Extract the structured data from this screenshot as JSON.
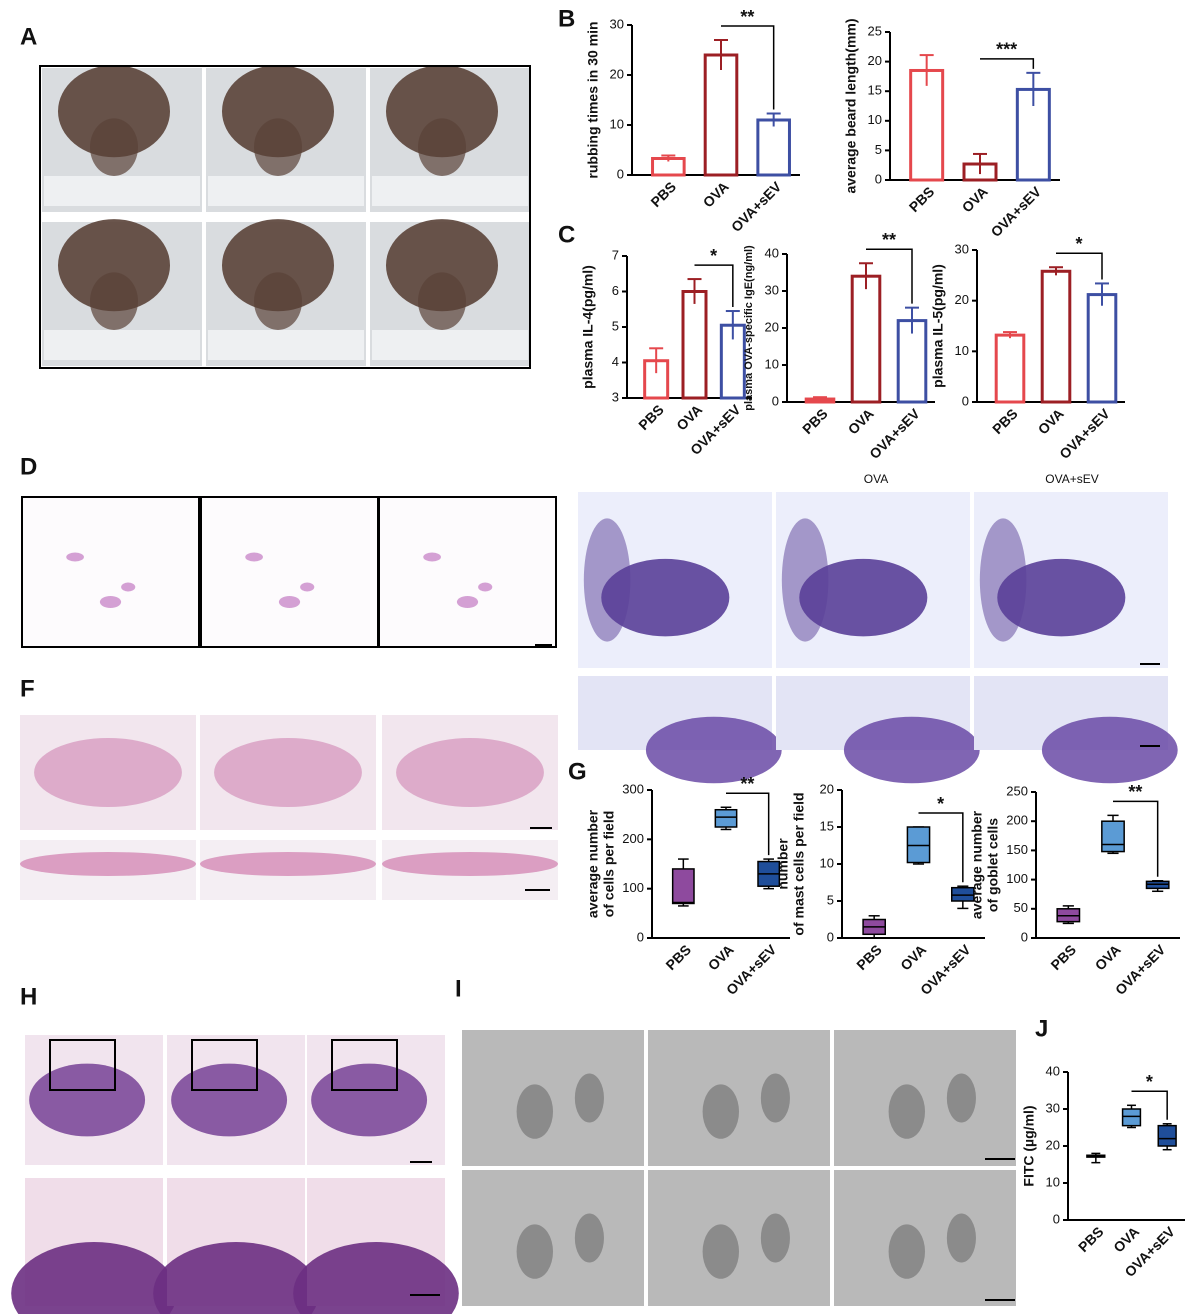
{
  "panel_labels": [
    "A",
    "B",
    "C",
    "D",
    "F",
    "G",
    "H",
    "I",
    "J"
  ],
  "panel_d_headers": [
    "OVA",
    "OVA+sEV"
  ],
  "chart_data": [
    {
      "type": "bar",
      "ylabel": "rubbing times in 30 min",
      "categories": [
        "PBS",
        "OVA",
        "OVA+sEV"
      ],
      "colors": [
        "#e5484d",
        "#9c1f24",
        "#3d4fa3"
      ],
      "values": [
        3.3,
        24,
        11
      ],
      "errors": [
        0.6,
        3,
        1.3
      ],
      "ylim": [
        0,
        30
      ],
      "yticks": [
        0,
        10,
        20,
        30
      ],
      "significance": {
        "between": [
          "OVA",
          "OVA+sEV"
        ],
        "label": "**"
      }
    },
    {
      "type": "bar",
      "ylabel": "average beard length(mm)",
      "categories": [
        "PBS",
        "OVA",
        "OVA+sEV"
      ],
      "colors": [
        "#e5484d",
        "#9c1f24",
        "#3d4fa3"
      ],
      "values": [
        18.5,
        2.7,
        15.3
      ],
      "errors": [
        2.6,
        1.7,
        2.8
      ],
      "ylim": [
        0,
        25
      ],
      "yticks": [
        0,
        5,
        10,
        15,
        20,
        25
      ],
      "significance": {
        "between": [
          "OVA",
          "OVA+sEV"
        ],
        "label": "***"
      }
    },
    {
      "type": "bar",
      "ylabel": "plasma IL-4(pg/ml)",
      "categories": [
        "PBS",
        "OVA",
        "OVA+sEV"
      ],
      "colors": [
        "#e5484d",
        "#9c1f24",
        "#3d4fa3"
      ],
      "values": [
        4.05,
        6.0,
        5.05
      ],
      "errors": [
        0.35,
        0.35,
        0.4
      ],
      "ylim": [
        3,
        7
      ],
      "yticks": [
        3,
        4,
        5,
        6,
        7
      ],
      "significance": {
        "between": [
          "OVA",
          "OVA+sEV"
        ],
        "label": "*"
      }
    },
    {
      "type": "bar",
      "ylabel": "plasma OVA-specific IgE(ng/ml)",
      "categories": [
        "PBS",
        "OVA",
        "OVA+sEV"
      ],
      "colors": [
        "#e5484d",
        "#9c1f24",
        "#3d4fa3"
      ],
      "values": [
        0.8,
        34,
        22
      ],
      "errors": [
        0.5,
        3.5,
        3.5
      ],
      "ylim": [
        0,
        40
      ],
      "yticks": [
        0,
        10,
        20,
        30,
        40
      ],
      "significance": {
        "between": [
          "OVA",
          "OVA+sEV"
        ],
        "label": "**"
      }
    },
    {
      "type": "bar",
      "ylabel": "plasma IL-5(pg/ml)",
      "categories": [
        "PBS",
        "OVA",
        "OVA+sEV"
      ],
      "colors": [
        "#e5484d",
        "#9c1f24",
        "#3d4fa3"
      ],
      "values": [
        13.2,
        25.8,
        21.2
      ],
      "errors": [
        0.6,
        0.8,
        2.2
      ],
      "ylim": [
        0,
        30
      ],
      "yticks": [
        0,
        10,
        20,
        30
      ],
      "significance": {
        "between": [
          "OVA",
          "OVA+sEV"
        ],
        "label": "*"
      }
    },
    {
      "type": "box",
      "ylabel": [
        "average number",
        "of cells per field"
      ],
      "categories": [
        "PBS",
        "OVA",
        "OVA+sEV"
      ],
      "boxes": [
        {
          "color": "#8e4a9e",
          "min": 65,
          "q1": 70,
          "median": 72,
          "q3": 140,
          "max": 160
        },
        {
          "color": "#5b9bd5",
          "min": 220,
          "q1": 225,
          "median": 245,
          "q3": 260,
          "max": 265
        },
        {
          "color": "#1f4e9a",
          "min": 100,
          "q1": 105,
          "median": 130,
          "q3": 155,
          "max": 160
        }
      ],
      "ylim": [
        0,
        300
      ],
      "yticks": [
        0,
        100,
        200,
        300
      ],
      "significance": {
        "between": [
          "OVA",
          "OVA+sEV"
        ],
        "label": "**"
      }
    },
    {
      "type": "box",
      "ylabel": [
        "number",
        "of mast cells per field"
      ],
      "categories": [
        "PBS",
        "OVA",
        "OVA+sEV"
      ],
      "boxes": [
        {
          "color": "#8e4a9e",
          "min": 0,
          "q1": 0.5,
          "median": 1.5,
          "q3": 2.5,
          "max": 3
        },
        {
          "color": "#5b9bd5",
          "min": 10,
          "q1": 10.2,
          "median": 12.5,
          "q3": 15,
          "max": 15
        },
        {
          "color": "#1f4e9a",
          "min": 4,
          "q1": 5,
          "median": 5.8,
          "q3": 6.8,
          "max": 7
        }
      ],
      "ylim": [
        0,
        20
      ],
      "yticks": [
        0,
        5,
        10,
        15,
        20
      ],
      "significance": {
        "between": [
          "OVA",
          "OVA+sEV"
        ],
        "label": "*"
      }
    },
    {
      "type": "box",
      "ylabel": [
        "average number",
        "of goblet cells"
      ],
      "categories": [
        "PBS",
        "OVA",
        "OVA+sEV"
      ],
      "boxes": [
        {
          "color": "#8e4a9e",
          "min": 25,
          "q1": 28,
          "median": 38,
          "q3": 50,
          "max": 55
        },
        {
          "color": "#5b9bd5",
          "min": 145,
          "q1": 148,
          "median": 160,
          "q3": 200,
          "max": 210
        },
        {
          "color": "#1f4e9a",
          "min": 80,
          "q1": 85,
          "median": 92,
          "q3": 97,
          "max": 98
        }
      ],
      "ylim": [
        0,
        250
      ],
      "yticks": [
        0,
        50,
        100,
        150,
        200,
        250
      ],
      "significance": {
        "between": [
          "OVA",
          "OVA+sEV"
        ],
        "label": "**"
      }
    },
    {
      "type": "box",
      "ylabel": "FITC (µg/ml)",
      "categories": [
        "PBS",
        "OVA",
        "OVA+sEV"
      ],
      "boxes": [
        {
          "color": "#8e4a9e",
          "min": 15.5,
          "q1": 17,
          "median": 17.3,
          "q3": 17.5,
          "max": 18
        },
        {
          "color": "#5b9bd5",
          "min": 25,
          "q1": 25.5,
          "median": 28,
          "q3": 30,
          "max": 31
        },
        {
          "color": "#1f4e9a",
          "min": 19,
          "q1": 20,
          "median": 22,
          "q3": 25.5,
          "max": 26
        }
      ],
      "ylim": [
        0,
        40
      ],
      "yticks": [
        0,
        10,
        20,
        30,
        40
      ],
      "significance": {
        "between": [
          "OVA",
          "OVA+sEV"
        ],
        "label": "*"
      }
    }
  ]
}
